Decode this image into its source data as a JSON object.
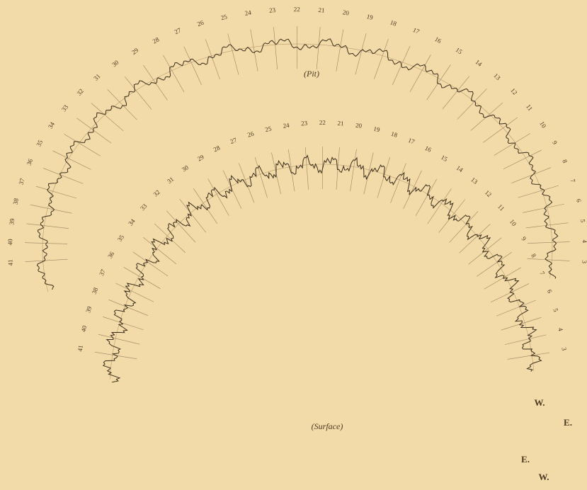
{
  "pit": {
    "label": "(Pit)",
    "numbers": [
      3,
      4,
      5,
      6,
      7,
      8,
      9,
      10,
      11,
      12,
      13,
      14,
      15,
      16,
      17,
      18,
      19,
      20,
      21,
      22,
      23,
      24,
      25,
      26,
      27,
      28,
      29,
      30,
      31,
      32,
      33,
      34,
      35,
      36,
      37,
      38,
      39,
      40,
      41
    ],
    "ends": [
      "W.",
      "E."
    ]
  },
  "surface": {
    "label": "(Surface)",
    "numbers": [
      3,
      4,
      5,
      6,
      7,
      8,
      9,
      10,
      11,
      12,
      13,
      14,
      15,
      16,
      17,
      18,
      19,
      20,
      21,
      22,
      23,
      24,
      25,
      26,
      27,
      28,
      29,
      30,
      31,
      32,
      33,
      34,
      35,
      36,
      37,
      38,
      39,
      40,
      41
    ],
    "ends": [
      "E.",
      "W."
    ]
  }
}
